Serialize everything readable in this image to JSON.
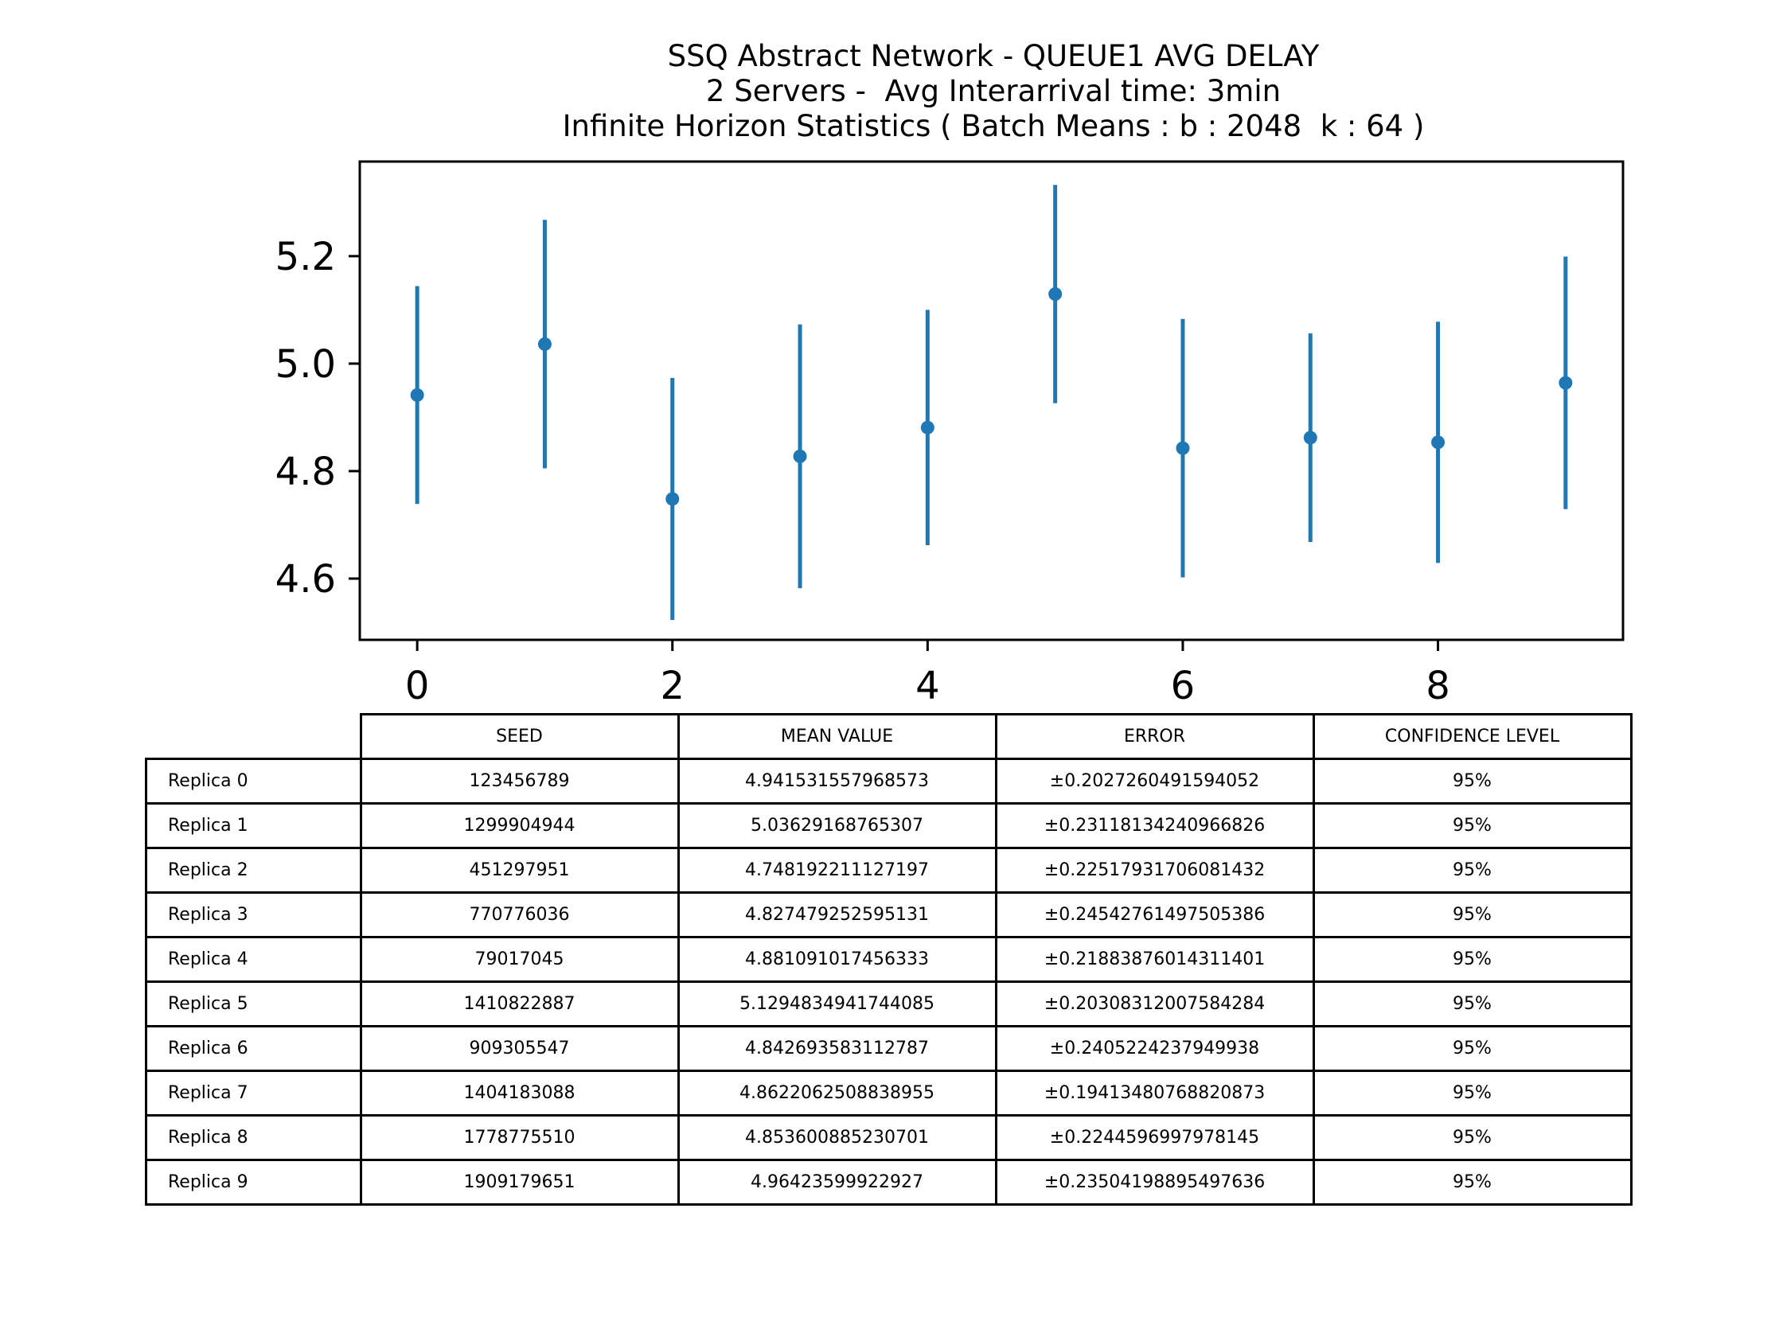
{
  "chart_data": {
    "type": "errorbar",
    "title": "SSQ Abstract Network - QUEUE1 AVG DELAY",
    "subtitle_lines": [
      "2 Servers -  Avg Interarrival time: 3min",
      "Infinite Horizon Statistics ( Batch Means : b : 2048  k : 64 )"
    ],
    "x": [
      0,
      1,
      2,
      3,
      4,
      5,
      6,
      7,
      8,
      9
    ],
    "y": [
      4.941531557968573,
      5.03629168765307,
      4.748192211127197,
      4.827479252595131,
      4.881091017456333,
      5.1294834941744085,
      4.842693583112787,
      4.8622062508838955,
      4.853600885230701,
      4.96423599922927
    ],
    "yerr": [
      0.2027260491594052,
      0.23118134240966826,
      0.22517931706081432,
      0.24542761497505386,
      0.21883876014311401,
      0.20308312007584284,
      0.2405224237949938,
      0.19413480768820873,
      0.2244596997978145,
      0.23504198895497636
    ],
    "xlim": [
      -0.45,
      9.45
    ],
    "ylim": [
      4.486,
      5.376
    ],
    "xticks": [
      "0",
      "2",
      "4",
      "6",
      "8"
    ],
    "yticks": [
      "4.6",
      "4.8",
      "5.0",
      "5.2"
    ],
    "grid": false,
    "color": "#1f77b4"
  },
  "table": {
    "columns": [
      "SEED",
      "MEAN VALUE",
      "ERROR",
      "CONFIDENCE LEVEL"
    ],
    "rows": [
      {
        "label": "Replica 0",
        "seed": "123456789",
        "mean": "4.941531557968573",
        "error": "±0.2027260491594052",
        "confidence": "95%"
      },
      {
        "label": "Replica 1",
        "seed": "1299904944",
        "mean": "5.03629168765307",
        "error": "±0.23118134240966826",
        "confidence": "95%"
      },
      {
        "label": "Replica 2",
        "seed": "451297951",
        "mean": "4.748192211127197",
        "error": "±0.22517931706081432",
        "confidence": "95%"
      },
      {
        "label": "Replica 3",
        "seed": "770776036",
        "mean": "4.827479252595131",
        "error": "±0.24542761497505386",
        "confidence": "95%"
      },
      {
        "label": "Replica 4",
        "seed": "79017045",
        "mean": "4.881091017456333",
        "error": "±0.21883876014311401",
        "confidence": "95%"
      },
      {
        "label": "Replica 5",
        "seed": "1410822887",
        "mean": "5.1294834941744085",
        "error": "±0.20308312007584284",
        "confidence": "95%"
      },
      {
        "label": "Replica 6",
        "seed": "909305547",
        "mean": "4.842693583112787",
        "error": "±0.2405224237949938",
        "confidence": "95%"
      },
      {
        "label": "Replica 7",
        "seed": "1404183088",
        "mean": "4.8622062508838955",
        "error": "±0.19413480768820873",
        "confidence": "95%"
      },
      {
        "label": "Replica 8",
        "seed": "1778775510",
        "mean": "4.853600885230701",
        "error": "±0.2244596997978145",
        "confidence": "95%"
      },
      {
        "label": "Replica 9",
        "seed": "1909179651",
        "mean": "4.96423599922927",
        "error": "±0.23504198895497636",
        "confidence": "95%"
      }
    ]
  }
}
